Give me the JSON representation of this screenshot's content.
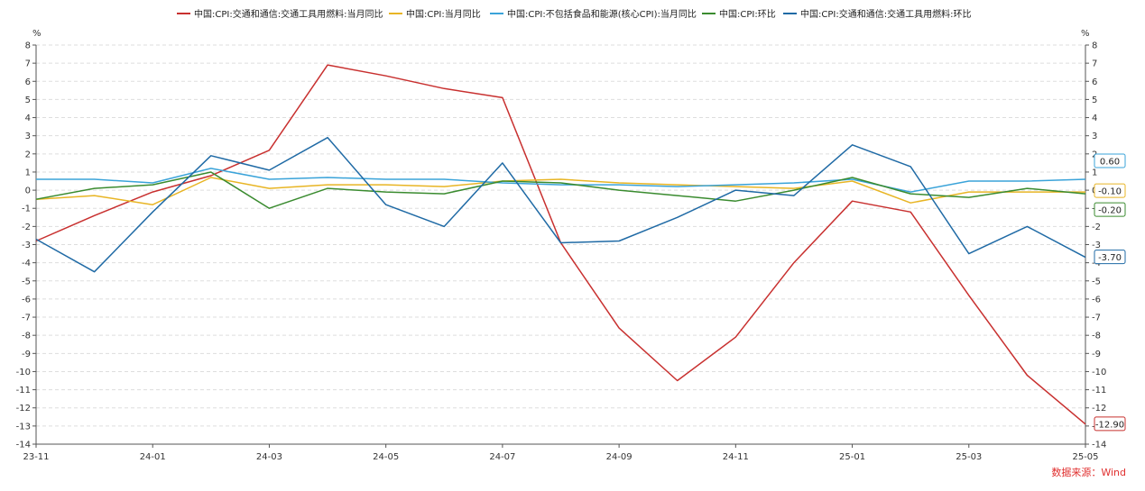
{
  "chart_data": {
    "type": "line",
    "x": [
      "23-11",
      "23-12",
      "24-01",
      "24-02",
      "24-03",
      "24-04",
      "24-05",
      "24-06",
      "24-07",
      "24-08",
      "24-09",
      "24-10",
      "24-11",
      "24-12",
      "25-01",
      "25-02",
      "25-03",
      "25-04",
      "25-05"
    ],
    "x_tick_labels": [
      "23-11",
      "24-01",
      "24-03",
      "24-05",
      "24-07",
      "24-09",
      "24-11",
      "25-01",
      "25-03",
      "25-05"
    ],
    "ylim": [
      -14,
      8
    ],
    "y_ticks": [
      8,
      7,
      6,
      5,
      4,
      3,
      2,
      1,
      0,
      -1,
      -2,
      -3,
      -4,
      -5,
      -6,
      -7,
      -8,
      -9,
      -10,
      -11,
      -12,
      -13,
      -14
    ],
    "y_unit_left": "%",
    "y_unit_right": "%",
    "grid": true,
    "legend": "top-center",
    "series": [
      {
        "name": "中国:CPI:交通和通信:交通工具用燃料:当月同比",
        "color": "#c8302f",
        "values": [
          -2.8,
          -1.4,
          -0.1,
          0.8,
          2.2,
          6.9,
          6.3,
          5.6,
          5.1,
          -2.9,
          -7.6,
          -10.5,
          -8.1,
          -4.0,
          -0.6,
          -1.2,
          -5.8,
          -10.2,
          -12.9
        ],
        "end_label": "-12.90"
      },
      {
        "name": "中国:CPI:当月同比",
        "color": "#e8b524",
        "values": [
          -0.5,
          -0.3,
          -0.8,
          0.7,
          0.1,
          0.3,
          0.3,
          0.2,
          0.5,
          0.6,
          0.4,
          0.3,
          0.2,
          0.1,
          0.5,
          -0.7,
          -0.1,
          -0.1,
          -0.1
        ],
        "end_label": "-0.10"
      },
      {
        "name": "中国:CPI:不包括食品和能源(核心CPI):当月同比",
        "color": "#3aa3d9",
        "values": [
          0.6,
          0.6,
          0.4,
          1.2,
          0.6,
          0.7,
          0.6,
          0.6,
          0.4,
          0.3,
          0.3,
          0.2,
          0.3,
          0.4,
          0.6,
          -0.1,
          0.5,
          0.5,
          0.6
        ],
        "end_label": "0.60"
      },
      {
        "name": "中国:CPI:环比",
        "color": "#3a8b2f",
        "values": [
          -0.5,
          0.1,
          0.3,
          1.0,
          -1.0,
          0.1,
          -0.1,
          -0.2,
          0.5,
          0.4,
          0.0,
          -0.3,
          -0.6,
          0.0,
          0.7,
          -0.2,
          -0.4,
          0.1,
          -0.2
        ],
        "end_label": "-0.20"
      },
      {
        "name": "中国:CPI:交通和通信:交通工具用燃料:环比",
        "color": "#1f6aa5",
        "values": [
          -2.7,
          -4.5,
          -1.2,
          1.9,
          1.1,
          2.9,
          -0.8,
          -2.0,
          1.5,
          -2.9,
          -2.8,
          -1.5,
          0.0,
          -0.3,
          2.5,
          1.3,
          -3.5,
          -2.0,
          -3.7
        ],
        "end_label": "-3.70"
      }
    ],
    "source": "数据来源：Wind"
  }
}
